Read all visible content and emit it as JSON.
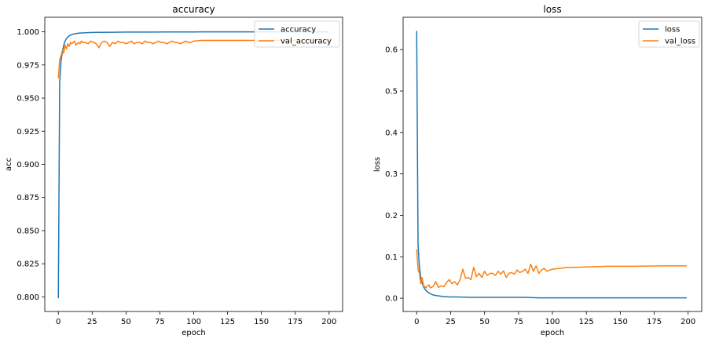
{
  "chart_data": [
    {
      "type": "line",
      "title": "accuracy",
      "xlabel": "epoch",
      "ylabel": "acc",
      "xlim": [
        -10,
        210
      ],
      "ylim": [
        0.789,
        1.011
      ],
      "xticks": [
        0,
        25,
        50,
        75,
        100,
        125,
        150,
        175,
        200
      ],
      "yticks": [
        0.8,
        0.825,
        0.85,
        0.875,
        0.9,
        0.925,
        0.95,
        0.975,
        1.0
      ],
      "ytick_labels": [
        "0.800",
        "0.825",
        "0.850",
        "0.875",
        "0.900",
        "0.925",
        "0.950",
        "0.975",
        "1.000"
      ],
      "legend_position": "top-right",
      "series": [
        {
          "name": "accuracy",
          "color": "#1f77b4",
          "x": [
            0,
            1,
            2,
            3,
            4,
            5,
            6,
            8,
            10,
            12,
            15,
            20,
            25,
            30,
            40,
            50,
            60,
            70,
            80,
            90,
            100,
            110,
            125,
            150,
            175,
            200
          ],
          "y": [
            0.799,
            0.962,
            0.978,
            0.985,
            0.99,
            0.993,
            0.995,
            0.997,
            0.998,
            0.9985,
            0.999,
            0.9993,
            0.9995,
            0.9996,
            0.9997,
            0.9998,
            0.9998,
            0.9998,
            0.9999,
            0.9999,
            0.9999,
            1.0,
            1.0,
            1.0,
            1.0,
            1.0
          ]
        },
        {
          "name": "val_accuracy",
          "color": "#ff7f0e",
          "x": [
            0,
            1,
            2,
            3,
            4,
            5,
            6,
            7,
            8,
            9,
            10,
            11,
            12,
            13,
            14,
            15,
            16,
            17,
            18,
            20,
            22,
            24,
            26,
            28,
            30,
            32,
            34,
            36,
            38,
            40,
            42,
            44,
            46,
            48,
            50,
            52,
            54,
            56,
            58,
            60,
            62,
            64,
            66,
            68,
            70,
            72,
            74,
            76,
            78,
            80,
            82,
            84,
            86,
            88,
            90,
            92,
            94,
            96,
            98,
            100,
            105,
            110,
            120,
            130,
            140,
            150,
            160,
            170,
            180,
            190,
            200
          ],
          "y": [
            0.965,
            0.979,
            0.982,
            0.986,
            0.984,
            0.99,
            0.987,
            0.991,
            0.989,
            0.992,
            0.991,
            0.992,
            0.993,
            0.99,
            0.991,
            0.992,
            0.991,
            0.993,
            0.992,
            0.992,
            0.991,
            0.993,
            0.992,
            0.991,
            0.988,
            0.992,
            0.993,
            0.992,
            0.989,
            0.992,
            0.991,
            0.993,
            0.992,
            0.992,
            0.991,
            0.992,
            0.993,
            0.991,
            0.992,
            0.992,
            0.991,
            0.993,
            0.992,
            0.992,
            0.991,
            0.992,
            0.993,
            0.992,
            0.992,
            0.991,
            0.992,
            0.993,
            0.992,
            0.992,
            0.991,
            0.992,
            0.993,
            0.992,
            0.992,
            0.993,
            0.9935,
            0.9935,
            0.9935,
            0.9935,
            0.9935,
            0.9935,
            0.9935,
            0.9935,
            0.9935,
            0.9935,
            0.9935
          ]
        }
      ]
    },
    {
      "type": "line",
      "title": "loss",
      "xlabel": "epoch",
      "ylabel": "loss",
      "xlim": [
        -10,
        210
      ],
      "ylim": [
        -0.032,
        0.678
      ],
      "xticks": [
        0,
        25,
        50,
        75,
        100,
        125,
        150,
        175,
        200
      ],
      "yticks": [
        0.0,
        0.1,
        0.2,
        0.3,
        0.4,
        0.5,
        0.6
      ],
      "ytick_labels": [
        "0.0",
        "0.1",
        "0.2",
        "0.3",
        "0.4",
        "0.5",
        "0.6"
      ],
      "legend_position": "top-right",
      "series": [
        {
          "name": "loss",
          "color": "#1f77b4",
          "x": [
            0,
            1,
            2,
            3,
            4,
            5,
            6,
            8,
            10,
            12,
            15,
            20,
            25,
            30,
            40,
            50,
            60,
            70,
            80,
            90,
            100,
            120,
            150,
            175,
            199
          ],
          "y": [
            0.645,
            0.13,
            0.075,
            0.05,
            0.037,
            0.028,
            0.022,
            0.015,
            0.011,
            0.008,
            0.006,
            0.004,
            0.003,
            0.003,
            0.002,
            0.002,
            0.002,
            0.002,
            0.002,
            0.001,
            0.001,
            0.001,
            0.001,
            0.001,
            0.001
          ]
        },
        {
          "name": "val_loss",
          "color": "#ff7f0e",
          "x": [
            0,
            1,
            2,
            3,
            4,
            5,
            6,
            7,
            8,
            9,
            10,
            12,
            14,
            16,
            18,
            20,
            22,
            24,
            26,
            28,
            30,
            32,
            34,
            36,
            38,
            40,
            42,
            44,
            46,
            48,
            50,
            52,
            54,
            56,
            58,
            60,
            62,
            64,
            66,
            68,
            70,
            72,
            74,
            76,
            78,
            80,
            82,
            84,
            86,
            88,
            90,
            92,
            94,
            96,
            98,
            100,
            105,
            110,
            120,
            130,
            140,
            150,
            160,
            170,
            180,
            190,
            199
          ],
          "y": [
            0.118,
            0.07,
            0.06,
            0.035,
            0.05,
            0.03,
            0.028,
            0.025,
            0.03,
            0.032,
            0.025,
            0.028,
            0.04,
            0.026,
            0.03,
            0.028,
            0.038,
            0.045,
            0.035,
            0.04,
            0.032,
            0.045,
            0.07,
            0.048,
            0.05,
            0.045,
            0.075,
            0.052,
            0.06,
            0.05,
            0.065,
            0.055,
            0.06,
            0.06,
            0.055,
            0.065,
            0.058,
            0.066,
            0.05,
            0.06,
            0.062,
            0.058,
            0.068,
            0.062,
            0.065,
            0.07,
            0.06,
            0.082,
            0.065,
            0.078,
            0.06,
            0.068,
            0.072,
            0.065,
            0.068,
            0.07,
            0.072,
            0.074,
            0.075,
            0.076,
            0.077,
            0.077,
            0.077,
            0.0775,
            0.078,
            0.078,
            0.078
          ]
        }
      ]
    }
  ]
}
